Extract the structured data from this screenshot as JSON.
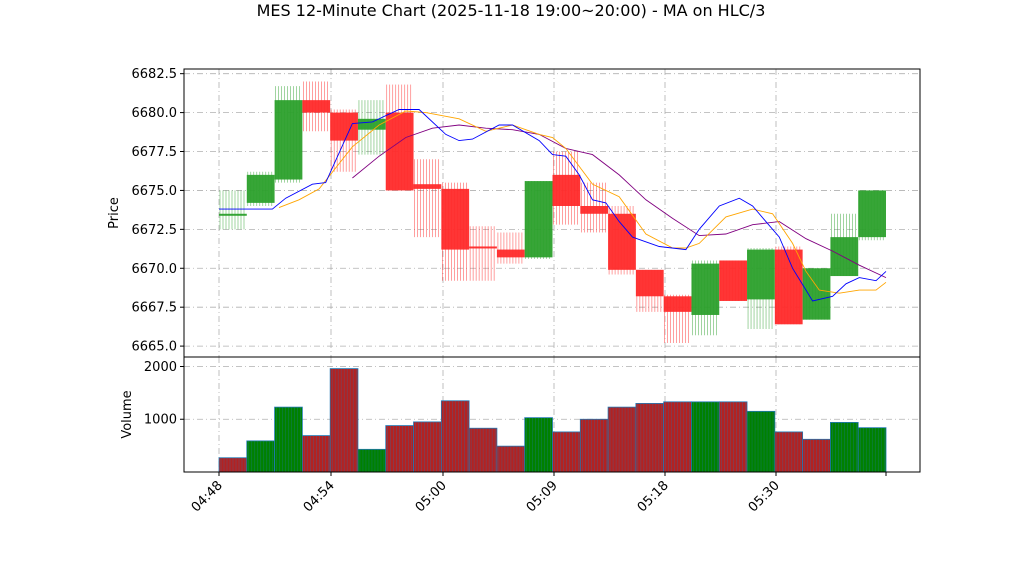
{
  "chart_data": {
    "type": "ohlc",
    "title": "MES 12-Minute Chart (2025-11-18 19:00~20:00) - MA on HLC/3",
    "x_tick_labels": [
      "04:48",
      "04:54",
      "05:00",
      "05:09",
      "05:18",
      "05:30"
    ],
    "price_panel": {
      "ylabel": "Price",
      "ylim": [
        6664.3,
        6682.8
      ],
      "y_ticks": [
        6665.0,
        6667.5,
        6670.0,
        6672.5,
        6675.0,
        6677.5,
        6680.0,
        6682.5
      ],
      "y_tick_labels": [
        "6665.0",
        "6667.5",
        "6670.0",
        "6672.5",
        "6675.0",
        "6677.5",
        "6680.0",
        "6682.5"
      ],
      "grid": true,
      "colors": {
        "up": "#2ca02c",
        "down": "#ff2a2a",
        "ma_fast": "#0000ff",
        "ma_mid": "#ffa500",
        "ma_slow": "#800080"
      },
      "bars": [
        {
          "o": 6673.5,
          "h": 6675.0,
          "l": 6672.5,
          "c": 6673.5
        },
        {
          "o": 6674.2,
          "h": 6676.2,
          "l": 6674.0,
          "c": 6676.0
        },
        {
          "o": 6675.7,
          "h": 6681.7,
          "l": 6675.5,
          "c": 6680.8
        },
        {
          "o": 6680.8,
          "h": 6682.0,
          "l": 6678.8,
          "c": 6680.0
        },
        {
          "o": 6680.0,
          "h": 6680.2,
          "l": 6676.2,
          "c": 6678.2
        },
        {
          "o": 6678.9,
          "h": 6680.8,
          "l": 6677.3,
          "c": 6679.6
        },
        {
          "o": 6680.0,
          "h": 6681.8,
          "l": 6675.0,
          "c": 6675.0
        },
        {
          "o": 6675.4,
          "h": 6677.0,
          "l": 6672.0,
          "c": 6675.1
        },
        {
          "o": 6675.1,
          "h": 6675.5,
          "l": 6669.2,
          "c": 6671.2
        },
        {
          "o": 6671.4,
          "h": 6672.7,
          "l": 6669.2,
          "c": 6671.3
        },
        {
          "o": 6671.2,
          "h": 6672.3,
          "l": 6670.3,
          "c": 6670.7
        },
        {
          "o": 6670.7,
          "h": 6675.6,
          "l": 6670.6,
          "c": 6675.6
        },
        {
          "o": 6676.0,
          "h": 6677.5,
          "l": 6672.8,
          "c": 6674.0
        },
        {
          "o": 6674.0,
          "h": 6675.5,
          "l": 6672.3,
          "c": 6673.5
        },
        {
          "o": 6673.5,
          "h": 6674.0,
          "l": 6669.6,
          "c": 6669.9
        },
        {
          "o": 6669.9,
          "h": 6669.9,
          "l": 6667.2,
          "c": 6668.2
        },
        {
          "o": 6668.2,
          "h": 6668.3,
          "l": 6665.2,
          "c": 6667.2
        },
        {
          "o": 6667.0,
          "h": 6670.5,
          "l": 6665.7,
          "c": 6670.3
        },
        {
          "o": 6670.5,
          "h": 6670.5,
          "l": 6667.9,
          "c": 6667.9
        },
        {
          "o": 6668.0,
          "h": 6671.3,
          "l": 6666.1,
          "c": 6671.2
        },
        {
          "o": 6671.2,
          "h": 6671.4,
          "l": 6666.4,
          "c": 6666.4
        },
        {
          "o": 6666.7,
          "h": 6670.0,
          "l": 6666.7,
          "c": 6670.0
        },
        {
          "o": 6669.5,
          "h": 6673.5,
          "l": 6669.5,
          "c": 6672.0
        },
        {
          "o": 6672.0,
          "h": 6675.0,
          "l": 6671.8,
          "c": 6675.0
        }
      ],
      "ma_fast": [
        [
          0.0,
          6673.8
        ],
        [
          0.08,
          6673.8
        ],
        [
          0.1,
          6674.5
        ],
        [
          0.14,
          6675.4
        ],
        [
          0.16,
          6675.5
        ],
        [
          0.2,
          6679.3
        ],
        [
          0.23,
          6679.4
        ],
        [
          0.27,
          6680.2
        ],
        [
          0.3,
          6680.2
        ],
        [
          0.34,
          6678.6
        ],
        [
          0.36,
          6678.2
        ],
        [
          0.38,
          6678.3
        ],
        [
          0.42,
          6679.2
        ],
        [
          0.44,
          6679.2
        ],
        [
          0.48,
          6678.2
        ],
        [
          0.5,
          6677.3
        ],
        [
          0.52,
          6677.2
        ],
        [
          0.54,
          6676.0
        ],
        [
          0.56,
          6674.4
        ],
        [
          0.58,
          6674.2
        ],
        [
          0.6,
          6673.0
        ],
        [
          0.62,
          6672.0
        ],
        [
          0.66,
          6671.4
        ],
        [
          0.7,
          6671.2
        ],
        [
          0.72,
          6672.5
        ],
        [
          0.75,
          6674.0
        ],
        [
          0.78,
          6674.5
        ],
        [
          0.8,
          6674.0
        ],
        [
          0.82,
          6673.0
        ],
        [
          0.84,
          6672.0
        ],
        [
          0.86,
          6670.0
        ],
        [
          0.88,
          6668.6
        ],
        [
          0.89,
          6667.9
        ],
        [
          0.92,
          6668.2
        ],
        [
          0.94,
          6669.0
        ],
        [
          0.96,
          6669.4
        ],
        [
          0.985,
          6669.2
        ],
        [
          1.0,
          6669.8
        ]
      ],
      "ma_mid": [
        [
          0.09,
          6673.9
        ],
        [
          0.12,
          6674.4
        ],
        [
          0.15,
          6675.1
        ],
        [
          0.2,
          6677.8
        ],
        [
          0.24,
          6679.2
        ],
        [
          0.28,
          6680.1
        ],
        [
          0.31,
          6680.0
        ],
        [
          0.36,
          6679.6
        ],
        [
          0.4,
          6678.8
        ],
        [
          0.44,
          6679.2
        ],
        [
          0.48,
          6678.6
        ],
        [
          0.5,
          6678.4
        ],
        [
          0.52,
          6677.7
        ],
        [
          0.56,
          6675.4
        ],
        [
          0.6,
          6674.6
        ],
        [
          0.64,
          6672.2
        ],
        [
          0.68,
          6671.3
        ],
        [
          0.7,
          6671.3
        ],
        [
          0.72,
          6671.6
        ],
        [
          0.76,
          6673.3
        ],
        [
          0.8,
          6673.8
        ],
        [
          0.83,
          6673.5
        ],
        [
          0.86,
          6671.6
        ],
        [
          0.88,
          6669.8
        ],
        [
          0.9,
          6668.6
        ],
        [
          0.93,
          6668.4
        ],
        [
          0.96,
          6668.6
        ],
        [
          0.985,
          6668.6
        ],
        [
          1.0,
          6669.1
        ]
      ],
      "ma_slow": [
        [
          0.2,
          6675.8
        ],
        [
          0.24,
          6677.2
        ],
        [
          0.28,
          6678.4
        ],
        [
          0.32,
          6679.0
        ],
        [
          0.36,
          6679.2
        ],
        [
          0.4,
          6679.0
        ],
        [
          0.44,
          6678.9
        ],
        [
          0.48,
          6678.6
        ],
        [
          0.52,
          6677.7
        ],
        [
          0.56,
          6677.3
        ],
        [
          0.6,
          6676.0
        ],
        [
          0.64,
          6674.4
        ],
        [
          0.68,
          6673.2
        ],
        [
          0.72,
          6672.1
        ],
        [
          0.76,
          6672.2
        ],
        [
          0.8,
          6672.8
        ],
        [
          0.84,
          6673.0
        ],
        [
          0.88,
          6671.9
        ],
        [
          0.92,
          6671.1
        ],
        [
          0.96,
          6670.2
        ],
        [
          1.0,
          6669.4
        ]
      ]
    },
    "volume_panel": {
      "ylabel": "Volume",
      "ylim": [
        0,
        2180
      ],
      "y_ticks": [
        1000,
        2000
      ],
      "y_tick_labels": [
        "1000",
        "2000"
      ],
      "grid": true,
      "colors": {
        "up": "#008000",
        "down": "#b22222",
        "edge": "#1f77b4"
      },
      "bars": [
        {
          "v": 270,
          "up": false
        },
        {
          "v": 590,
          "up": true
        },
        {
          "v": 1230,
          "up": true
        },
        {
          "v": 690,
          "up": false
        },
        {
          "v": 1960,
          "up": false
        },
        {
          "v": 430,
          "up": true
        },
        {
          "v": 880,
          "up": false
        },
        {
          "v": 950,
          "up": false
        },
        {
          "v": 1350,
          "up": false
        },
        {
          "v": 830,
          "up": false
        },
        {
          "v": 490,
          "up": false
        },
        {
          "v": 1030,
          "up": true
        },
        {
          "v": 760,
          "up": false
        },
        {
          "v": 1000,
          "up": false
        },
        {
          "v": 1230,
          "up": false
        },
        {
          "v": 1300,
          "up": false
        },
        {
          "v": 1330,
          "up": false
        },
        {
          "v": 1330,
          "up": true
        },
        {
          "v": 1330,
          "up": false
        },
        {
          "v": 1150,
          "up": true
        },
        {
          "v": 760,
          "up": false
        },
        {
          "v": 620,
          "up": false
        },
        {
          "v": 940,
          "up": true
        },
        {
          "v": 840,
          "up": true
        }
      ]
    }
  }
}
